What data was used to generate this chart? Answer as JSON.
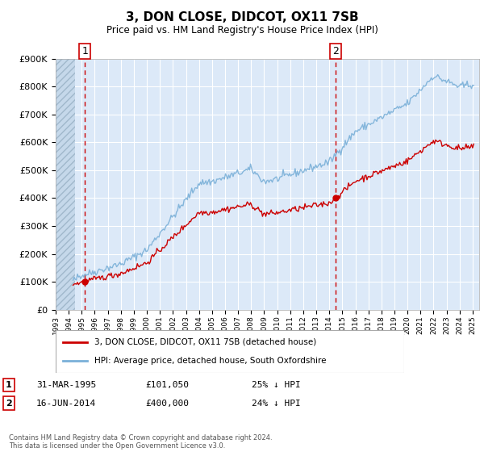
{
  "title": "3, DON CLOSE, DIDCOT, OX11 7SB",
  "subtitle": "Price paid vs. HM Land Registry's House Price Index (HPI)",
  "ylim": [
    0,
    900000
  ],
  "yticks": [
    0,
    100000,
    200000,
    300000,
    400000,
    500000,
    600000,
    700000,
    800000,
    900000
  ],
  "background_color": "#ffffff",
  "plot_bg_color": "#dce9f8",
  "grid_color": "#ffffff",
  "line_color_hpi": "#7ab0d8",
  "line_color_price": "#cc0000",
  "marker_color": "#cc0000",
  "vline_color": "#cc0000",
  "legend_label_price": "3, DON CLOSE, DIDCOT, OX11 7SB (detached house)",
  "legend_label_hpi": "HPI: Average price, detached house, South Oxfordshire",
  "transaction1_year": 1995.25,
  "transaction1_price": 101050,
  "transaction2_year": 2014.46,
  "transaction2_price": 400000,
  "table_row1": [
    "1",
    "31-MAR-1995",
    "£101,050",
    "25% ↓ HPI"
  ],
  "table_row2": [
    "2",
    "16-JUN-2014",
    "£400,000",
    "24% ↓ HPI"
  ],
  "footnote": "Contains HM Land Registry data © Crown copyright and database right 2024.\nThis data is licensed under the Open Government Licence v3.0."
}
